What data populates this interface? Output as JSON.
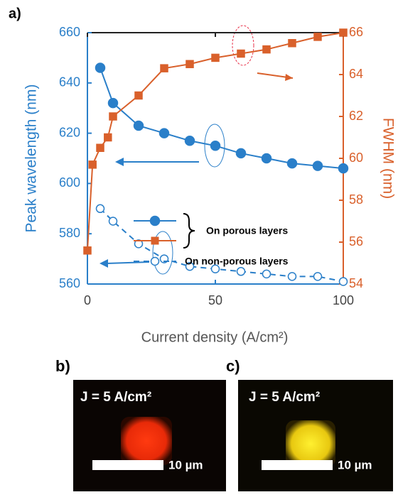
{
  "chart_data": {
    "type": "line",
    "panel_label": "a)",
    "xlabel": "Current density (A/cm²)",
    "ylabel": "Peak wavelength (nm)",
    "y2label": "FWHM (nm)",
    "xlim": [
      0,
      100
    ],
    "xticks": [
      0,
      50,
      100
    ],
    "ylim": [
      560,
      660
    ],
    "yticks": [
      560,
      580,
      600,
      620,
      640,
      660
    ],
    "y2lim": [
      54,
      66
    ],
    "y2ticks": [
      54,
      56,
      58,
      60,
      62,
      64,
      66
    ],
    "series": [
      {
        "name": "On porous layers",
        "color": "#2a7fc9",
        "marker": "circle",
        "filled": true,
        "linestyle": "solid",
        "x": [
          5,
          10,
          20,
          30,
          40,
          50,
          60,
          70,
          80,
          90,
          100
        ],
        "values": [
          646,
          632,
          623,
          620,
          617,
          615,
          612,
          610,
          608,
          607,
          606
        ]
      },
      {
        "color": "#d9602b",
        "marker": "square",
        "filled": true,
        "linestyle": "solid",
        "axis": "y2",
        "x": [
          0,
          2,
          5,
          8,
          10,
          20,
          30,
          40,
          50,
          60,
          70,
          80,
          90,
          100
        ],
        "values": [
          55.6,
          59.7,
          60.5,
          61,
          62,
          63,
          64.3,
          64.5,
          64.8,
          65,
          65.2,
          65.5,
          65.8,
          66
        ]
      },
      {
        "name": "On non-porous layers",
        "color": "#2a7fc9",
        "marker": "circle",
        "filled": false,
        "linestyle": "dashed",
        "x": [
          5,
          10,
          20,
          30,
          40,
          50,
          60,
          70,
          80,
          90,
          100
        ],
        "values": [
          590,
          585,
          576,
          570,
          567,
          566,
          565,
          564,
          563,
          563,
          561
        ]
      }
    ]
  },
  "panels": [
    {
      "label": "b)",
      "annotation": "J = 5 A/cm²",
      "scale_bar": "10 µm"
    },
    {
      "label": "c)",
      "annotation": "J = 5 A/cm²",
      "scale_bar": "10 µm"
    }
  ]
}
